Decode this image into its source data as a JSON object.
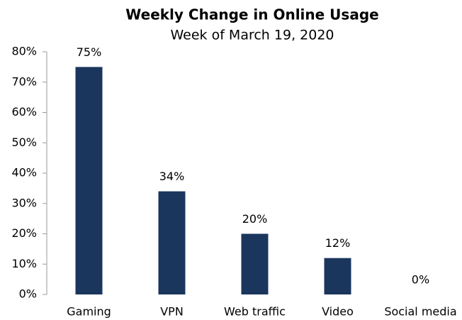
{
  "chart_data": {
    "type": "bar",
    "title": "Weekly Change in Online Usage",
    "subtitle": "Week of March 19, 2020",
    "categories": [
      "Gaming",
      "VPN",
      "Web traffic",
      "Video",
      "Social media"
    ],
    "values": [
      75,
      34,
      20,
      12,
      0
    ],
    "value_labels": [
      "75%",
      "34%",
      "20%",
      "12%",
      "0%"
    ],
    "color": "#1b365d",
    "ylim": [
      0,
      80
    ],
    "yticks": [
      {
        "value": 0,
        "label": "0%"
      },
      {
        "value": 10,
        "label": "10%"
      },
      {
        "value": 20,
        "label": "20%"
      },
      {
        "value": 30,
        "label": "30%"
      },
      {
        "value": 40,
        "label": "40%"
      },
      {
        "value": 50,
        "label": "50%"
      },
      {
        "value": 60,
        "label": "60%"
      },
      {
        "value": 70,
        "label": "70%"
      },
      {
        "value": 80,
        "label": "80%"
      }
    ],
    "grid": false
  }
}
